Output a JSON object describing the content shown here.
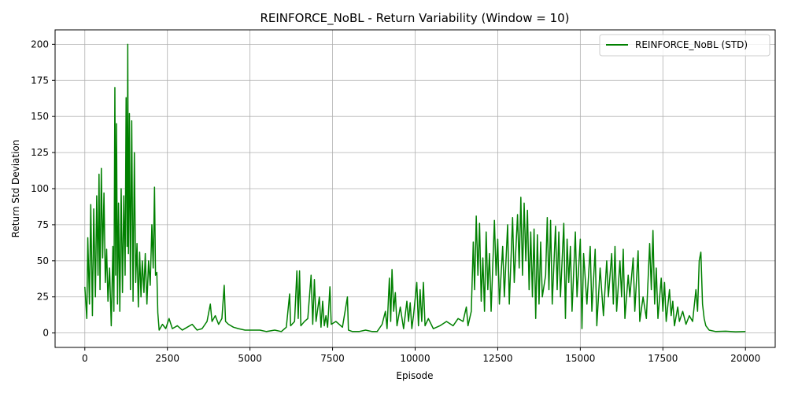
{
  "chart_data": {
    "type": "line",
    "title": "REINFORCE_NoBL - Return Variability (Window = 10)",
    "xlabel": "Episode",
    "ylabel": "Return Std Deviation",
    "xlim": [
      -900,
      20900
    ],
    "ylim": [
      -10,
      210
    ],
    "xticks": [
      0,
      2500,
      5000,
      7500,
      10000,
      12500,
      15000,
      17500,
      20000
    ],
    "yticks": [
      0,
      25,
      50,
      75,
      100,
      125,
      150,
      175,
      200
    ],
    "grid": true,
    "legend_position": "top-right",
    "series": [
      {
        "name": "REINFORCE_NoBL (STD)",
        "color": "#008000",
        "points": [
          [
            0,
            32
          ],
          [
            60,
            10
          ],
          [
            90,
            66
          ],
          [
            140,
            20
          ],
          [
            180,
            89
          ],
          [
            230,
            12
          ],
          [
            270,
            86
          ],
          [
            320,
            25
          ],
          [
            360,
            95
          ],
          [
            400,
            40
          ],
          [
            430,
            110
          ],
          [
            460,
            30
          ],
          [
            500,
            114
          ],
          [
            540,
            52
          ],
          [
            580,
            97
          ],
          [
            620,
            35
          ],
          [
            660,
            58
          ],
          [
            700,
            22
          ],
          [
            750,
            45
          ],
          [
            800,
            5
          ],
          [
            850,
            60
          ],
          [
            880,
            15
          ],
          [
            910,
            170
          ],
          [
            935,
            40
          ],
          [
            960,
            145
          ],
          [
            990,
            20
          ],
          [
            1020,
            90
          ],
          [
            1060,
            15
          ],
          [
            1100,
            100
          ],
          [
            1140,
            28
          ],
          [
            1180,
            95
          ],
          [
            1220,
            40
          ],
          [
            1250,
            163
          ],
          [
            1280,
            60
          ],
          [
            1300,
            200
          ],
          [
            1320,
            55
          ],
          [
            1350,
            152
          ],
          [
            1380,
            30
          ],
          [
            1420,
            147
          ],
          [
            1460,
            22
          ],
          [
            1500,
            125
          ],
          [
            1540,
            35
          ],
          [
            1580,
            62
          ],
          [
            1620,
            18
          ],
          [
            1660,
            56
          ],
          [
            1700,
            25
          ],
          [
            1740,
            50
          ],
          [
            1790,
            28
          ],
          [
            1830,
            55
          ],
          [
            1880,
            20
          ],
          [
            1930,
            50
          ],
          [
            1980,
            33
          ],
          [
            2030,
            75
          ],
          [
            2070,
            45
          ],
          [
            2110,
            101
          ],
          [
            2140,
            40
          ],
          [
            2180,
            42
          ],
          [
            2210,
            14
          ],
          [
            2250,
            2
          ],
          [
            2350,
            6
          ],
          [
            2450,
            3
          ],
          [
            2550,
            10
          ],
          [
            2650,
            3
          ],
          [
            2800,
            5
          ],
          [
            2950,
            2
          ],
          [
            3100,
            4
          ],
          [
            3250,
            6
          ],
          [
            3400,
            2
          ],
          [
            3550,
            3
          ],
          [
            3700,
            8
          ],
          [
            3800,
            20
          ],
          [
            3850,
            8
          ],
          [
            3950,
            12
          ],
          [
            4050,
            6
          ],
          [
            4150,
            10
          ],
          [
            4220,
            33
          ],
          [
            4260,
            8
          ],
          [
            4350,
            6
          ],
          [
            4500,
            4
          ],
          [
            4650,
            3
          ],
          [
            4850,
            2
          ],
          [
            5050,
            2
          ],
          [
            5300,
            2
          ],
          [
            5500,
            1
          ],
          [
            5750,
            2
          ],
          [
            5950,
            1
          ],
          [
            6100,
            4
          ],
          [
            6200,
            27
          ],
          [
            6230,
            5
          ],
          [
            6350,
            8
          ],
          [
            6420,
            43
          ],
          [
            6460,
            10
          ],
          [
            6500,
            43
          ],
          [
            6540,
            5
          ],
          [
            6650,
            8
          ],
          [
            6750,
            10
          ],
          [
            6850,
            40
          ],
          [
            6900,
            6
          ],
          [
            6950,
            37
          ],
          [
            7000,
            8
          ],
          [
            7100,
            25
          ],
          [
            7150,
            4
          ],
          [
            7200,
            22
          ],
          [
            7250,
            5
          ],
          [
            7300,
            12
          ],
          [
            7350,
            4
          ],
          [
            7420,
            32
          ],
          [
            7460,
            6
          ],
          [
            7600,
            8
          ],
          [
            7800,
            4
          ],
          [
            7950,
            25
          ],
          [
            7980,
            2
          ],
          [
            8100,
            1
          ],
          [
            8300,
            1
          ],
          [
            8500,
            2
          ],
          [
            8700,
            1
          ],
          [
            8850,
            1
          ],
          [
            9000,
            6
          ],
          [
            9100,
            15
          ],
          [
            9150,
            3
          ],
          [
            9220,
            38
          ],
          [
            9260,
            8
          ],
          [
            9300,
            44
          ],
          [
            9350,
            15
          ],
          [
            9400,
            28
          ],
          [
            9450,
            5
          ],
          [
            9550,
            18
          ],
          [
            9650,
            3
          ],
          [
            9750,
            22
          ],
          [
            9800,
            8
          ],
          [
            9850,
            21
          ],
          [
            9900,
            3
          ],
          [
            9950,
            12
          ],
          [
            10050,
            35
          ],
          [
            10100,
            5
          ],
          [
            10150,
            30
          ],
          [
            10200,
            8
          ],
          [
            10250,
            35
          ],
          [
            10300,
            5
          ],
          [
            10400,
            10
          ],
          [
            10550,
            3
          ],
          [
            10750,
            5
          ],
          [
            10950,
            8
          ],
          [
            11150,
            5
          ],
          [
            11300,
            10
          ],
          [
            11450,
            8
          ],
          [
            11550,
            18
          ],
          [
            11600,
            5
          ],
          [
            11700,
            15
          ],
          [
            11760,
            63
          ],
          [
            11800,
            30
          ],
          [
            11850,
            81
          ],
          [
            11900,
            40
          ],
          [
            11950,
            76
          ],
          [
            12000,
            22
          ],
          [
            12050,
            52
          ],
          [
            12100,
            15
          ],
          [
            12150,
            70
          ],
          [
            12200,
            30
          ],
          [
            12250,
            55
          ],
          [
            12300,
            15
          ],
          [
            12400,
            78
          ],
          [
            12450,
            40
          ],
          [
            12500,
            65
          ],
          [
            12550,
            20
          ],
          [
            12650,
            60
          ],
          [
            12700,
            25
          ],
          [
            12800,
            75
          ],
          [
            12850,
            20
          ],
          [
            12950,
            80
          ],
          [
            13000,
            35
          ],
          [
            13100,
            82
          ],
          [
            13150,
            45
          ],
          [
            13200,
            94
          ],
          [
            13250,
            40
          ],
          [
            13300,
            90
          ],
          [
            13350,
            50
          ],
          [
            13400,
            85
          ],
          [
            13450,
            30
          ],
          [
            13500,
            70
          ],
          [
            13550,
            25
          ],
          [
            13600,
            72
          ],
          [
            13650,
            10
          ],
          [
            13700,
            68
          ],
          [
            13750,
            20
          ],
          [
            13800,
            63
          ],
          [
            13850,
            25
          ],
          [
            13950,
            40
          ],
          [
            14000,
            80
          ],
          [
            14050,
            30
          ],
          [
            14100,
            78
          ],
          [
            14150,
            20
          ],
          [
            14250,
            74
          ],
          [
            14300,
            30
          ],
          [
            14350,
            70
          ],
          [
            14400,
            25
          ],
          [
            14500,
            76
          ],
          [
            14550,
            10
          ],
          [
            14600,
            65
          ],
          [
            14650,
            35
          ],
          [
            14700,
            60
          ],
          [
            14750,
            15
          ],
          [
            14850,
            70
          ],
          [
            14900,
            25
          ],
          [
            15000,
            65
          ],
          [
            15050,
            3
          ],
          [
            15100,
            55
          ],
          [
            15200,
            20
          ],
          [
            15300,
            60
          ],
          [
            15350,
            15
          ],
          [
            15450,
            58
          ],
          [
            15500,
            5
          ],
          [
            15600,
            45
          ],
          [
            15700,
            12
          ],
          [
            15800,
            50
          ],
          [
            15850,
            25
          ],
          [
            15950,
            55
          ],
          [
            16000,
            20
          ],
          [
            16050,
            60
          ],
          [
            16100,
            15
          ],
          [
            16200,
            50
          ],
          [
            16250,
            25
          ],
          [
            16300,
            58
          ],
          [
            16350,
            10
          ],
          [
            16450,
            40
          ],
          [
            16500,
            25
          ],
          [
            16600,
            52
          ],
          [
            16650,
            15
          ],
          [
            16750,
            57
          ],
          [
            16800,
            8
          ],
          [
            16900,
            25
          ],
          [
            17000,
            10
          ],
          [
            17100,
            62
          ],
          [
            17150,
            30
          ],
          [
            17200,
            71
          ],
          [
            17250,
            20
          ],
          [
            17300,
            45
          ],
          [
            17350,
            10
          ],
          [
            17450,
            38
          ],
          [
            17500,
            15
          ],
          [
            17550,
            35
          ],
          [
            17600,
            8
          ],
          [
            17700,
            30
          ],
          [
            17750,
            12
          ],
          [
            17800,
            22
          ],
          [
            17850,
            5
          ],
          [
            17950,
            18
          ],
          [
            18000,
            8
          ],
          [
            18100,
            15
          ],
          [
            18200,
            6
          ],
          [
            18300,
            12
          ],
          [
            18400,
            8
          ],
          [
            18500,
            30
          ],
          [
            18550,
            15
          ],
          [
            18600,
            50
          ],
          [
            18650,
            56
          ],
          [
            18700,
            20
          ],
          [
            18750,
            10
          ],
          [
            18800,
            5
          ],
          [
            18900,
            2
          ],
          [
            19100,
            1
          ],
          [
            19400,
            1.2
          ],
          [
            19700,
            0.8
          ],
          [
            20000,
            1
          ]
        ]
      }
    ]
  }
}
